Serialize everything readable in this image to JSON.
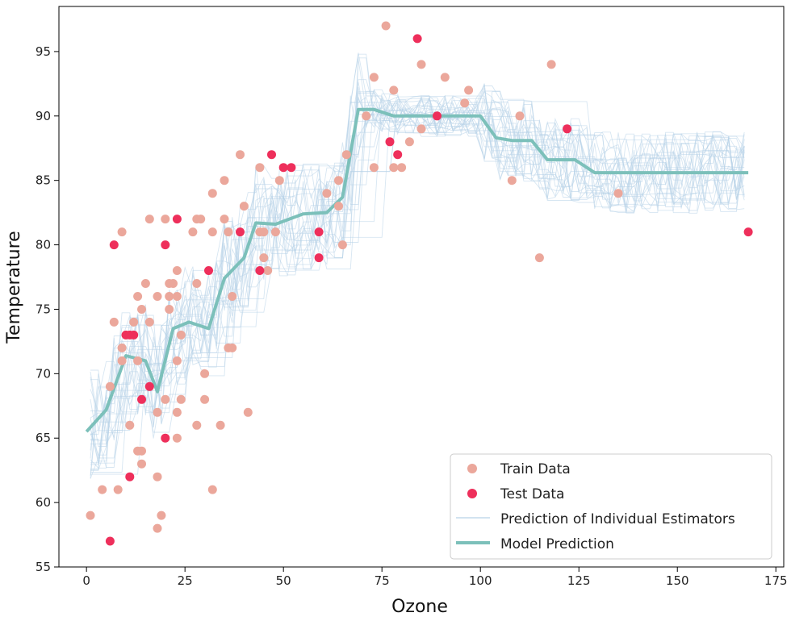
{
  "chart_data": {
    "type": "scatter",
    "xlabel": "Ozone",
    "ylabel": "Temperature",
    "xlim": [
      -7,
      177
    ],
    "ylim": [
      55,
      98.5
    ],
    "xticks": [
      0,
      25,
      50,
      75,
      100,
      125,
      150,
      175
    ],
    "yticks": [
      55,
      60,
      65,
      70,
      75,
      80,
      85,
      90,
      95
    ],
    "legend": {
      "placement": "lower-right",
      "entries": [
        "Train Data",
        "Test Data",
        "Prediction of Individual Estimators",
        "Model Prediction"
      ]
    },
    "colors": {
      "train": "#eba79b",
      "test": "#ee2f5b",
      "estimators": "#b7d2e8",
      "model": "#7cc0ba"
    },
    "series": [
      {
        "name": "Train Data",
        "kind": "scatter",
        "points": [
          [
            1,
            59
          ],
          [
            4,
            61
          ],
          [
            6,
            69
          ],
          [
            7,
            74
          ],
          [
            8,
            61
          ],
          [
            9,
            81
          ],
          [
            9,
            71
          ],
          [
            9,
            72
          ],
          [
            11,
            66
          ],
          [
            12,
            74
          ],
          [
            13,
            76
          ],
          [
            13,
            71
          ],
          [
            13,
            64
          ],
          [
            14,
            63
          ],
          [
            14,
            75
          ],
          [
            14,
            64
          ],
          [
            15,
            77
          ],
          [
            16,
            74
          ],
          [
            16,
            82
          ],
          [
            18,
            76
          ],
          [
            18,
            67
          ],
          [
            18,
            62
          ],
          [
            18,
            58
          ],
          [
            19,
            59
          ],
          [
            20,
            68
          ],
          [
            20,
            82
          ],
          [
            21,
            76
          ],
          [
            21,
            75
          ],
          [
            21,
            77
          ],
          [
            22,
            77
          ],
          [
            23,
            78
          ],
          [
            23,
            76
          ],
          [
            23,
            71
          ],
          [
            23,
            67
          ],
          [
            23,
            65
          ],
          [
            24,
            68
          ],
          [
            24,
            73
          ],
          [
            27,
            81
          ],
          [
            28,
            82
          ],
          [
            28,
            77
          ],
          [
            28,
            66
          ],
          [
            29,
            82
          ],
          [
            30,
            70
          ],
          [
            30,
            68
          ],
          [
            32,
            84
          ],
          [
            32,
            81
          ],
          [
            32,
            61
          ],
          [
            34,
            66
          ],
          [
            35,
            85
          ],
          [
            35,
            82
          ],
          [
            36,
            81
          ],
          [
            36,
            72
          ],
          [
            37,
            76
          ],
          [
            37,
            72
          ],
          [
            39,
            87
          ],
          [
            40,
            83
          ],
          [
            41,
            67
          ],
          [
            44,
            86
          ],
          [
            44,
            81
          ],
          [
            45,
            81
          ],
          [
            45,
            79
          ],
          [
            46,
            78
          ],
          [
            48,
            81
          ],
          [
            49,
            85
          ],
          [
            64,
            83
          ],
          [
            64,
            85
          ],
          [
            61,
            84
          ],
          [
            65,
            80
          ],
          [
            66,
            87
          ],
          [
            71,
            90
          ],
          [
            73,
            93
          ],
          [
            73,
            86
          ],
          [
            76,
            97
          ],
          [
            78,
            92
          ],
          [
            78,
            86
          ],
          [
            80,
            86
          ],
          [
            82,
            88
          ],
          [
            85,
            94
          ],
          [
            85,
            89
          ],
          [
            91,
            93
          ],
          [
            96,
            91
          ],
          [
            97,
            92
          ],
          [
            108,
            85
          ],
          [
            110,
            90
          ],
          [
            115,
            79
          ],
          [
            118,
            94
          ],
          [
            135,
            84
          ]
        ]
      },
      {
        "name": "Test Data",
        "kind": "scatter",
        "points": [
          [
            6,
            57
          ],
          [
            7,
            80
          ],
          [
            10,
            73
          ],
          [
            11,
            62
          ],
          [
            11,
            73
          ],
          [
            12,
            73
          ],
          [
            14,
            68
          ],
          [
            16,
            69
          ],
          [
            20,
            65
          ],
          [
            20,
            80
          ],
          [
            23,
            82
          ],
          [
            31,
            78
          ],
          [
            39,
            81
          ],
          [
            44,
            78
          ],
          [
            47,
            87
          ],
          [
            50,
            86
          ],
          [
            52,
            86
          ],
          [
            59,
            81
          ],
          [
            59,
            79
          ],
          [
            77,
            88
          ],
          [
            79,
            87
          ],
          [
            84,
            96
          ],
          [
            89,
            90
          ],
          [
            122,
            89
          ],
          [
            168,
            81
          ]
        ]
      },
      {
        "name": "Model Prediction",
        "kind": "line",
        "points": [
          [
            0,
            65.5
          ],
          [
            5,
            67.2
          ],
          [
            10,
            71.4
          ],
          [
            15,
            71
          ],
          [
            18,
            68.6
          ],
          [
            22,
            73.5
          ],
          [
            26,
            74
          ],
          [
            31,
            73.5
          ],
          [
            35,
            77.4
          ],
          [
            40,
            79
          ],
          [
            43,
            81.7
          ],
          [
            48,
            81.6
          ],
          [
            55,
            82.4
          ],
          [
            61,
            82.5
          ],
          [
            65,
            83.7
          ],
          [
            69,
            90.5
          ],
          [
            73,
            90.5
          ],
          [
            78,
            90
          ],
          [
            86,
            90
          ],
          [
            97,
            90
          ],
          [
            100,
            90
          ],
          [
            104,
            88.3
          ],
          [
            108,
            88.1
          ],
          [
            113,
            88.1
          ],
          [
            117,
            86.6
          ],
          [
            124,
            86.6
          ],
          [
            129,
            85.6
          ],
          [
            168,
            85.6
          ]
        ]
      }
    ]
  }
}
